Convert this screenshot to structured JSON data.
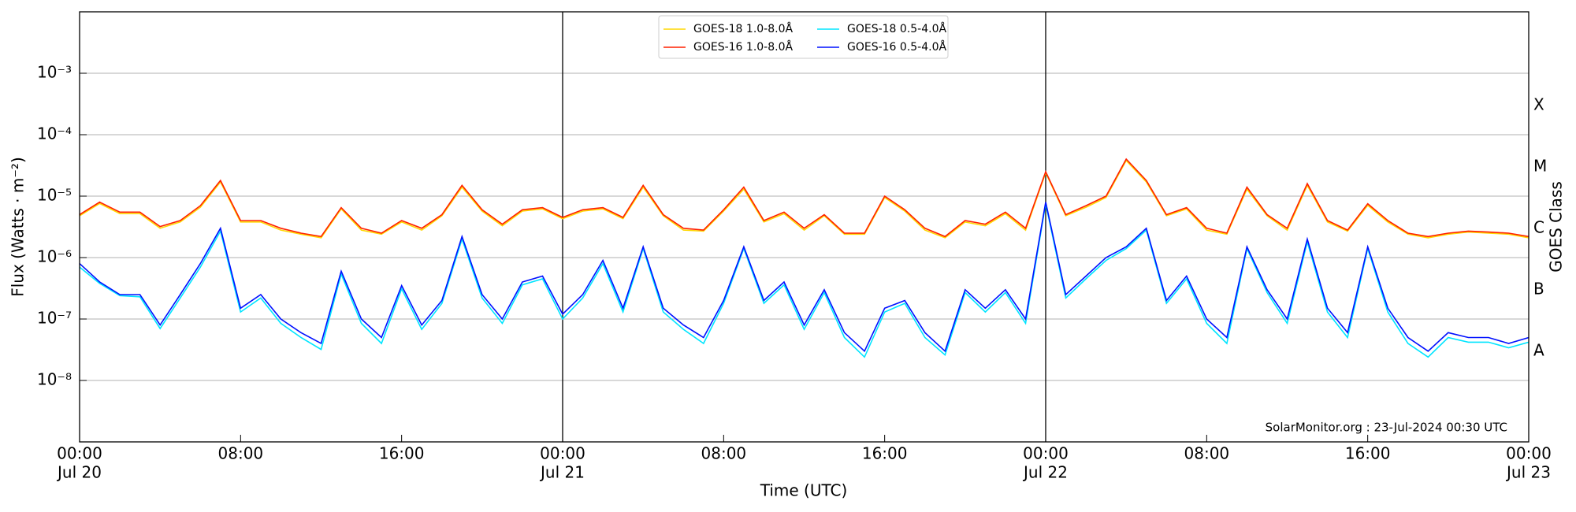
{
  "chart_data": {
    "type": "line",
    "xlabel": "Time (UTC)",
    "ylabel": "Flux (Watts · m⁻²)",
    "y2label": "GOES Class",
    "annotation": "SolarMonitor.org : 23-Jul-2024 00:30 UTC",
    "yscale": "log",
    "grid": true,
    "legend": "top",
    "xlim": [
      "Jul 20 00:00",
      "Jul 23 00:00"
    ],
    "ylim": [
      1e-09,
      0.01
    ],
    "yticks": [
      {
        "value": 1e-08,
        "label": "10⁻⁸"
      },
      {
        "value": 1e-07,
        "label": "10⁻⁷"
      },
      {
        "value": 1e-06,
        "label": "10⁻⁶"
      },
      {
        "value": 1e-05,
        "label": "10⁻⁵"
      },
      {
        "value": 0.0001,
        "label": "10⁻⁴"
      },
      {
        "value": 0.001,
        "label": "10⁻³"
      }
    ],
    "y2lim": [
      1e-09,
      0.01
    ],
    "y2ticks": [
      {
        "value": 3e-08,
        "label": "A"
      },
      {
        "value": 3e-07,
        "label": "B"
      },
      {
        "value": 3e-06,
        "label": "C"
      },
      {
        "value": 3e-05,
        "label": "M"
      },
      {
        "value": 0.0003,
        "label": "X"
      }
    ],
    "xticks": [
      {
        "value": "Jul 20 00:00",
        "label": [
          "00:00",
          "Jul 20"
        ]
      },
      {
        "value": "Jul 20 08:00",
        "label": [
          "08:00"
        ]
      },
      {
        "value": "Jul 20 16:00",
        "label": [
          "16:00"
        ]
      },
      {
        "value": "Jul 21 00:00",
        "label": [
          "00:00",
          "Jul 21"
        ]
      },
      {
        "value": "Jul 21 08:00",
        "label": [
          "08:00"
        ]
      },
      {
        "value": "Jul 21 16:00",
        "label": [
          "16:00"
        ]
      },
      {
        "value": "Jul 22 00:00",
        "label": [
          "00:00",
          "Jul 22"
        ]
      },
      {
        "value": "Jul 22 08:00",
        "label": [
          "08:00"
        ]
      },
      {
        "value": "Jul 22 16:00",
        "label": [
          "16:00"
        ]
      },
      {
        "value": "Jul 23 00:00",
        "label": [
          "00:00",
          "Jul 23"
        ]
      }
    ],
    "vlines": [
      "Jul 21 00:00",
      "Jul 22 00:00"
    ],
    "x": [
      "Jul 20 00:00",
      "Jul 20 01:00",
      "Jul 20 02:00",
      "Jul 20 03:00",
      "Jul 20 04:00",
      "Jul 20 05:00",
      "Jul 20 06:00",
      "Jul 20 07:00",
      "Jul 20 08:00",
      "Jul 20 09:00",
      "Jul 20 10:00",
      "Jul 20 11:00",
      "Jul 20 12:00",
      "Jul 20 13:00",
      "Jul 20 14:00",
      "Jul 20 15:00",
      "Jul 20 16:00",
      "Jul 20 17:00",
      "Jul 20 18:00",
      "Jul 20 19:00",
      "Jul 20 20:00",
      "Jul 20 21:00",
      "Jul 20 22:00",
      "Jul 20 23:00",
      "Jul 21 00:00",
      "Jul 21 01:00",
      "Jul 21 02:00",
      "Jul 21 03:00",
      "Jul 21 04:00",
      "Jul 21 05:00",
      "Jul 21 06:00",
      "Jul 21 07:00",
      "Jul 21 08:00",
      "Jul 21 09:00",
      "Jul 21 10:00",
      "Jul 21 11:00",
      "Jul 21 12:00",
      "Jul 21 13:00",
      "Jul 21 14:00",
      "Jul 21 15:00",
      "Jul 21 16:00",
      "Jul 21 17:00",
      "Jul 21 18:00",
      "Jul 21 19:00",
      "Jul 21 20:00",
      "Jul 21 21:00",
      "Jul 21 22:00",
      "Jul 21 23:00",
      "Jul 22 00:00",
      "Jul 22 01:00",
      "Jul 22 02:00",
      "Jul 22 03:00",
      "Jul 22 04:00",
      "Jul 22 05:00",
      "Jul 22 06:00",
      "Jul 22 07:00",
      "Jul 22 08:00",
      "Jul 22 09:00",
      "Jul 22 10:00",
      "Jul 22 11:00",
      "Jul 22 12:00",
      "Jul 22 13:00",
      "Jul 22 14:00",
      "Jul 22 15:00",
      "Jul 22 16:00",
      "Jul 22 17:00",
      "Jul 22 18:00",
      "Jul 22 19:00",
      "Jul 22 20:00",
      "Jul 22 21:00",
      "Jul 22 22:00",
      "Jul 22 23:00",
      "Jul 23 00:00"
    ],
    "series": [
      {
        "name": "GOES-18 1.0-8.0Å",
        "color": "#ffd700",
        "values": [
          4.8e-06,
          7.6e-06,
          5.2e-06,
          5.2e-06,
          3e-06,
          3.8e-06,
          6.6e-06,
          1.7e-05,
          3.8e-06,
          3.8e-06,
          2.8e-06,
          2.4e-06,
          2.1e-06,
          6.2e-06,
          2.8e-06,
          2.4e-06,
          3.8e-06,
          2.8e-06,
          4.8e-06,
          1.4e-05,
          5.7e-06,
          3.3e-06,
          5.7e-06,
          6.2e-06,
          4.3e-06,
          5.7e-06,
          6.2e-06,
          4.3e-06,
          1.4e-05,
          4.8e-06,
          2.8e-06,
          2.7e-06,
          5.7e-06,
          1.3e-05,
          3.8e-06,
          5.2e-06,
          2.8e-06,
          4.8e-06,
          2.4e-06,
          2.4e-06,
          9.5e-06,
          5.7e-06,
          2.8e-06,
          2.1e-06,
          3.8e-06,
          3.3e-06,
          5.2e-06,
          2.8e-06,
          2.4e-05,
          4.8e-06,
          6.6e-06,
          9.5e-06,
          3.8e-05,
          1.7e-05,
          4.8e-06,
          6.2e-06,
          2.8e-06,
          2.4e-06,
          1.3e-05,
          4.8e-06,
          2.8e-06,
          1.5e-05,
          3.8e-06,
          2.7e-06,
          7.1e-06,
          3.8e-06,
          2.4e-06,
          2.1e-06,
          2.4e-06,
          2.6e-06,
          2.5e-06,
          2.4e-06,
          2.1e-06
        ]
      },
      {
        "name": "GOES-16 1.0-8.0Å",
        "color": "#ff2000",
        "values": [
          5e-06,
          8e-06,
          5.5e-06,
          5.5e-06,
          3.2e-06,
          4e-06,
          7e-06,
          1.8e-05,
          4e-06,
          4e-06,
          3e-06,
          2.5e-06,
          2.2e-06,
          6.5e-06,
          3e-06,
          2.5e-06,
          4e-06,
          3e-06,
          5e-06,
          1.5e-05,
          6e-06,
          3.5e-06,
          6e-06,
          6.5e-06,
          4.5e-06,
          6e-06,
          6.5e-06,
          4.5e-06,
          1.5e-05,
          5e-06,
          3e-06,
          2.8e-06,
          6e-06,
          1.4e-05,
          4e-06,
          5.5e-06,
          3e-06,
          5e-06,
          2.5e-06,
          2.5e-06,
          1e-05,
          6e-06,
          3e-06,
          2.2e-06,
          4e-06,
          3.5e-06,
          5.5e-06,
          3e-06,
          2.5e-05,
          5e-06,
          7e-06,
          1e-05,
          4e-05,
          1.8e-05,
          5e-06,
          6.5e-06,
          3e-06,
          2.5e-06,
          1.4e-05,
          5e-06,
          3e-06,
          1.6e-05,
          4e-06,
          2.8e-06,
          7.5e-06,
          4e-06,
          2.5e-06,
          2.2e-06,
          2.5e-06,
          2.7e-06,
          2.6e-06,
          2.5e-06,
          2.2e-06
        ]
      },
      {
        "name": "GOES-18 0.5-4.0Å",
        "color": "#00e5ff",
        "values": [
          7e-07,
          3.8e-07,
          2.4e-07,
          2.3e-07,
          7e-08,
          2.2e-07,
          7e-07,
          2.7e-06,
          1.3e-07,
          2.2e-07,
          8.5e-08,
          5e-08,
          3.2e-08,
          5.4e-07,
          8.5e-08,
          4e-08,
          3.1e-07,
          6.8e-08,
          1.8e-07,
          2e-06,
          2.2e-07,
          8.5e-08,
          3.6e-07,
          4.5e-07,
          1e-07,
          2.2e-07,
          8e-07,
          1.3e-07,
          1.4e-06,
          1.3e-07,
          6.8e-08,
          4e-08,
          1.8e-07,
          1.4e-06,
          1.8e-07,
          3.6e-07,
          6.8e-08,
          2.7e-07,
          5e-08,
          2.4e-08,
          1.3e-07,
          1.8e-07,
          5e-08,
          2.6e-08,
          2.7e-07,
          1.3e-07,
          2.7e-07,
          8.5e-08,
          7.5e-06,
          2.2e-07,
          4.5e-07,
          9e-07,
          1.4e-06,
          2.8e-06,
          1.8e-07,
          4.5e-07,
          8.5e-08,
          4e-08,
          1.4e-06,
          2.7e-07,
          8.5e-08,
          1.8e-06,
          1.3e-07,
          5e-08,
          1.4e-06,
          1.3e-07,
          4e-08,
          2.4e-08,
          5e-08,
          4.2e-08,
          4.2e-08,
          3.4e-08,
          4.2e-08
        ]
      },
      {
        "name": "GOES-16 0.5-4.0Å",
        "color": "#0010ff",
        "values": [
          8e-07,
          4e-07,
          2.5e-07,
          2.5e-07,
          8e-08,
          2.5e-07,
          8e-07,
          3e-06,
          1.5e-07,
          2.5e-07,
          1e-07,
          6e-08,
          4e-08,
          6e-07,
          1e-07,
          5e-08,
          3.5e-07,
          8e-08,
          2e-07,
          2.2e-06,
          2.5e-07,
          1e-07,
          4e-07,
          5e-07,
          1.2e-07,
          2.5e-07,
          9e-07,
          1.5e-07,
          1.5e-06,
          1.5e-07,
          8e-08,
          5e-08,
          2e-07,
          1.5e-06,
          2e-07,
          4e-07,
          8e-08,
          3e-07,
          6e-08,
          3e-08,
          1.5e-07,
          2e-07,
          6e-08,
          3e-08,
          3e-07,
          1.5e-07,
          3e-07,
          1e-07,
          8e-06,
          2.5e-07,
          5e-07,
          1e-06,
          1.5e-06,
          3e-06,
          2e-07,
          5e-07,
          1e-07,
          5e-08,
          1.5e-06,
          3e-07,
          1e-07,
          2e-06,
          1.5e-07,
          6e-08,
          1.5e-06,
          1.5e-07,
          5e-08,
          3e-08,
          6e-08,
          5e-08,
          5e-08,
          4e-08,
          5e-08
        ]
      }
    ]
  }
}
